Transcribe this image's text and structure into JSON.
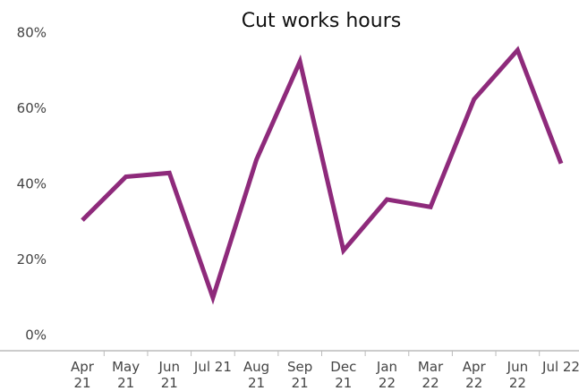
{
  "chart_data": {
    "type": "line",
    "title": "Cut works hours",
    "categories": [
      "Apr 21",
      "May 21",
      "Jun 21",
      "Jul 21",
      "Aug 21",
      "Sep 21",
      "Dec 21",
      "Jan 22",
      "Mar 22",
      "Apr 22",
      "Jun 22",
      "Jul 22"
    ],
    "series": [
      {
        "name": "Cut works hours",
        "color": "#8e2a7b",
        "values": [
          30.5,
          42,
          43,
          10,
          46.5,
          72.5,
          22.5,
          36,
          34,
          62.5,
          75.5,
          45.5
        ]
      }
    ],
    "ylim": [
      0,
      80
    ],
    "yticks": [
      {
        "value": 0,
        "label": "0%"
      },
      {
        "value": 20,
        "label": "20%"
      },
      {
        "value": 40,
        "label": "40%"
      },
      {
        "value": 60,
        "label": "60%"
      },
      {
        "value": 80,
        "label": "80%"
      }
    ],
    "grid": false
  }
}
